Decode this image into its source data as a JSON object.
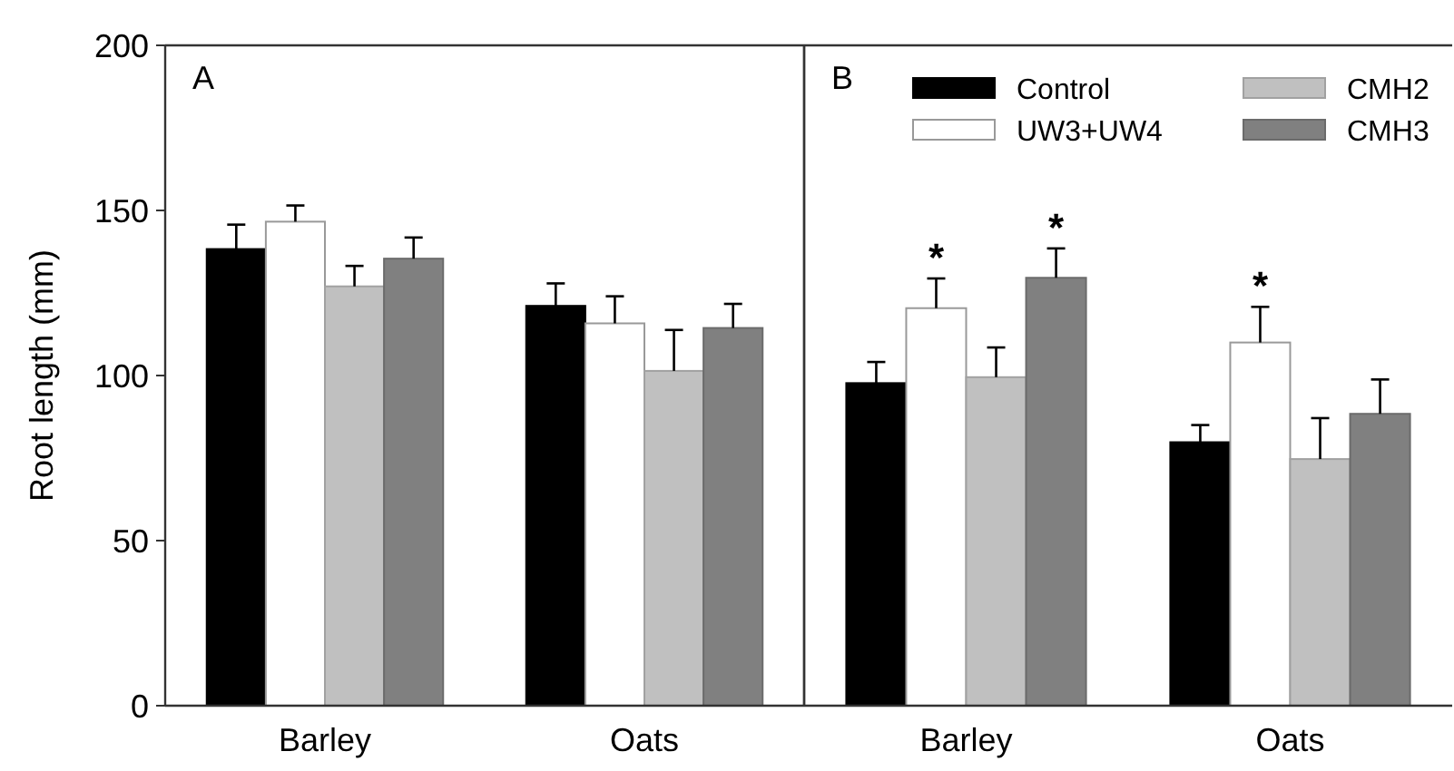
{
  "chart_data": [
    {
      "type": "bar",
      "title": "A",
      "ylabel": "Root length (mm)",
      "categories": [
        "Barley",
        "Oats"
      ],
      "ylim": [
        0,
        200
      ],
      "yticks": [
        0,
        50,
        100,
        150,
        200
      ],
      "legend": false,
      "series": [
        {
          "color": "#000000",
          "values": [
            138.3,
            121.1
          ],
          "errors": [
            [
              138.3,
              145.7
            ],
            [
              121.1,
              127.9
            ]
          ]
        },
        {
          "color": "#ffffff",
          "values": [
            146.6,
            115.8
          ],
          "errors": [
            [
              146.6,
              151.5
            ],
            [
              115.8,
              124
            ]
          ]
        },
        {
          "color": "#c0c0c0",
          "values": [
            127,
            101.4
          ],
          "errors": [
            [
              127,
              133.2
            ],
            [
              101.4,
              113.8
            ]
          ]
        },
        {
          "color": "#808080",
          "values": [
            135.4,
            114.4
          ],
          "errors": [
            [
              135.4,
              141.8
            ],
            [
              114.4,
              121.7
            ]
          ]
        }
      ]
    },
    {
      "type": "bar",
      "title": "B",
      "categories": [
        "Barley",
        "Oats"
      ],
      "ylim": [
        0,
        200
      ],
      "tick_labels": "x",
      "legend": "top right",
      "series": [
        {
          "name": "Control",
          "color": "#000000",
          "values": [
            97.7,
            79.8
          ],
          "errors": [
            [
              97.7,
              104.1
            ],
            [
              79.8,
              85
            ]
          ]
        },
        {
          "name": "UW3+UW4",
          "color": "#ffffff",
          "values": [
            120.4,
            110
          ],
          "errors": [
            [
              120.4,
              129.4
            ],
            [
              110,
              120.8
            ]
          ],
          "value_labels": [
            "*",
            "*"
          ]
        },
        {
          "name": "CMH2",
          "color": "#c0c0c0",
          "values": [
            99.5,
            74.7
          ],
          "errors": [
            [
              99.5,
              108.5
            ],
            [
              74.7,
              87.1
            ]
          ]
        },
        {
          "name": "CMH3",
          "color": "#808080",
          "values": [
            129.6,
            88.4
          ],
          "errors": [
            [
              129.6,
              138.5
            ],
            [
              88.4,
              98.8
            ]
          ],
          "value_labels": [
            "*",
            null
          ]
        }
      ]
    }
  ]
}
